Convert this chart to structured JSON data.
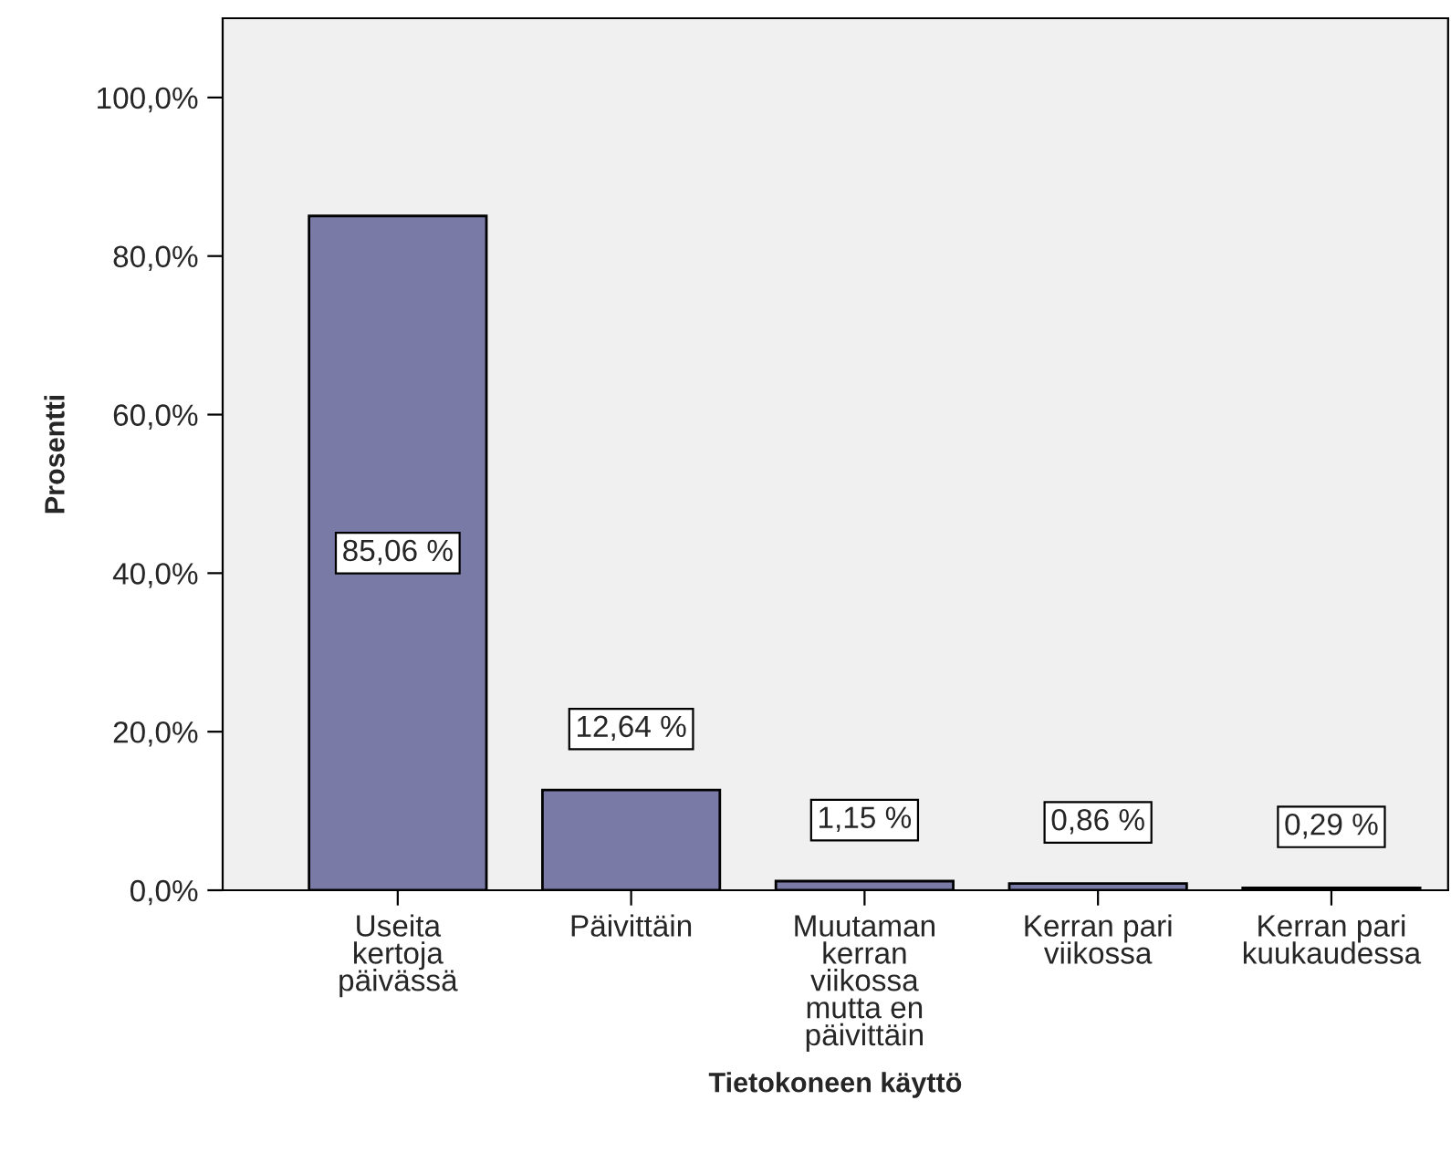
{
  "chart_data": {
    "type": "bar",
    "xlabel": "Tietokoneen käyttö",
    "ylabel": "Prosentti",
    "categories": [
      "Useita\nkertoja\npäivässä",
      "Päivittäin",
      "Muutaman\nkerran\nviikossa\nmutta en\npäivittäin",
      "Kerran pari\nviikossa",
      "Kerran pari\nkuukaudessa"
    ],
    "values": [
      85.06,
      12.64,
      1.15,
      0.86,
      0.29
    ],
    "value_labels": [
      "85,06 %",
      "12,64 %",
      "1,15 %",
      "0,86 %",
      "0,29 %"
    ],
    "color": "#7a7aa6",
    "ylim": [
      0,
      110
    ],
    "yticks": [
      {
        "value": 0,
        "label": "0,0%"
      },
      {
        "value": 20,
        "label": "20,0%"
      },
      {
        "value": 40,
        "label": "40,0%"
      },
      {
        "value": 60,
        "label": "60,0%"
      },
      {
        "value": 80,
        "label": "80,0%"
      },
      {
        "value": 100,
        "label": "100,0%"
      }
    ],
    "grid": false
  }
}
